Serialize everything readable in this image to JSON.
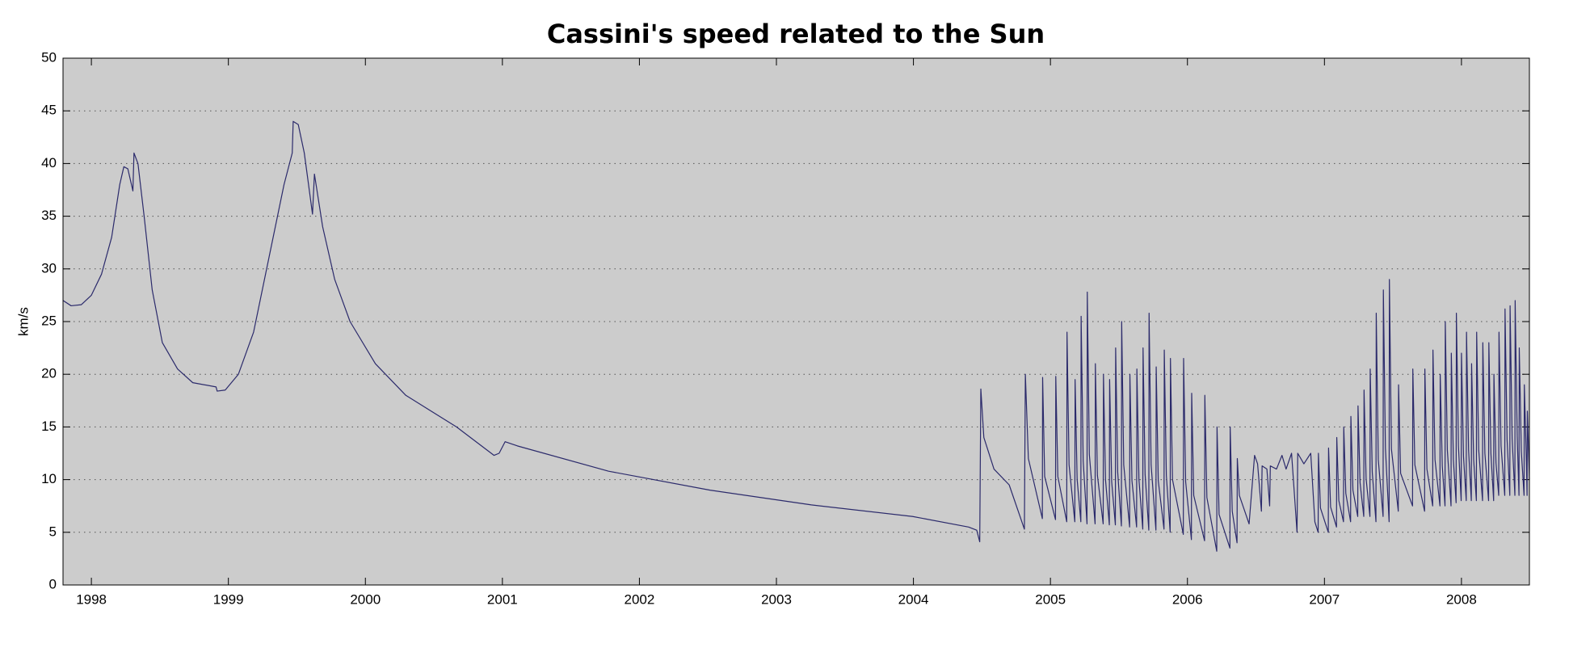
{
  "chart_data": {
    "type": "line",
    "title": "Cassini's speed related to the Sun",
    "y_label": "km/s",
    "color": "#2b2a6b",
    "background": "#cccccc",
    "grid": true,
    "xlim": [
      1997.793,
      2008.496
    ],
    "xticks": [
      1998,
      1999,
      2000,
      2001,
      2002,
      2003,
      2004,
      2005,
      2006,
      2007,
      2008
    ],
    "ylim": [
      0,
      50
    ],
    "yticks": [
      0,
      5,
      10,
      15,
      20,
      25,
      30,
      35,
      40,
      45,
      50
    ],
    "x": [
      1997.793,
      1997.852,
      1997.926,
      1998.0,
      1998.074,
      1998.148,
      1998.207,
      1998.237,
      1998.266,
      1998.303,
      1998.311,
      1998.34,
      1998.385,
      1998.444,
      1998.518,
      1998.629,
      1998.74,
      1998.91,
      1998.918,
      1998.977,
      1999.073,
      1999.184,
      1999.295,
      1999.406,
      1999.466,
      1999.473,
      1999.51,
      1999.554,
      1999.614,
      1999.628,
      1999.688,
      1999.776,
      1999.888,
      2000.073,
      2000.295,
      2000.665,
      2000.939,
      2000.976,
      2001.02,
      2001.109,
      2001.775,
      2002.515,
      2003.255,
      2003.995,
      2004.403,
      2004.462,
      2004.484,
      2004.492,
      2004.514,
      2004.588,
      2004.699,
      2004.81,
      2004.817,
      2004.839,
      2004.941,
      2004.943,
      2004.958,
      2005.037,
      2005.039,
      2005.054,
      2005.119,
      2005.121,
      2005.136,
      2005.178,
      2005.18,
      2005.195,
      2005.222,
      2005.224,
      2005.239,
      2005.267,
      2005.269,
      2005.284,
      2005.326,
      2005.328,
      2005.343,
      2005.385,
      2005.387,
      2005.402,
      2005.43,
      2005.432,
      2005.447,
      2005.474,
      2005.476,
      2005.491,
      2005.518,
      2005.52,
      2005.535,
      2005.578,
      2005.58,
      2005.595,
      2005.629,
      2005.631,
      2005.646,
      2005.674,
      2005.676,
      2005.691,
      2005.718,
      2005.72,
      2005.735,
      2005.77,
      2005.772,
      2005.787,
      2005.829,
      2005.831,
      2005.846,
      2005.874,
      2005.876,
      2005.891,
      2005.97,
      2005.972,
      2005.987,
      2006.029,
      2006.031,
      2006.046,
      2006.125,
      2006.127,
      2006.142,
      2006.214,
      2006.216,
      2006.231,
      2006.31,
      2006.312,
      2006.327,
      2006.362,
      2006.364,
      2006.379,
      2006.45,
      2006.49,
      2006.512,
      2006.54,
      2006.545,
      2006.58,
      2006.6,
      2006.605,
      2006.65,
      2006.69,
      2006.72,
      2006.76,
      2006.8,
      2006.805,
      2006.85,
      2006.9,
      2006.93,
      2006.954,
      2006.956,
      2006.971,
      2007.028,
      2007.03,
      2007.045,
      2007.088,
      2007.09,
      2007.105,
      2007.139,
      2007.141,
      2007.156,
      2007.191,
      2007.193,
      2007.208,
      2007.243,
      2007.245,
      2007.26,
      2007.287,
      2007.289,
      2007.304,
      2007.332,
      2007.334,
      2007.349,
      2007.376,
      2007.378,
      2007.393,
      2007.428,
      2007.43,
      2007.445,
      2007.472,
      2007.474,
      2007.489,
      2007.539,
      2007.541,
      2007.556,
      2007.643,
      2007.645,
      2007.66,
      2007.731,
      2007.733,
      2007.748,
      2007.79,
      2007.792,
      2007.807,
      2007.843,
      2007.845,
      2007.86,
      2007.88,
      2007.882,
      2007.897,
      2007.924,
      2007.926,
      2007.941,
      2007.961,
      2007.963,
      2007.978,
      2007.998,
      2008.0,
      2008.015,
      2008.035,
      2008.037,
      2008.052,
      2008.072,
      2008.074,
      2008.089,
      2008.109,
      2008.111,
      2008.126,
      2008.154,
      2008.156,
      2008.171,
      2008.198,
      2008.2,
      2008.215,
      2008.235,
      2008.237,
      2008.252,
      2008.272,
      2008.274,
      2008.289,
      2008.316,
      2008.318,
      2008.333,
      2008.353,
      2008.355,
      2008.37,
      2008.39,
      2008.392,
      2008.407,
      2008.42,
      2008.422,
      2008.437,
      2008.457,
      2008.459,
      2008.474,
      2008.479,
      2008.481,
      2008.494,
      2008.496
    ],
    "values": [
      27.0,
      26.5,
      26.6,
      27.5,
      29.5,
      33,
      38,
      39.7,
      39.5,
      37.4,
      41,
      40,
      35,
      28,
      23,
      20.5,
      19.2,
      18.8,
      18.4,
      18.5,
      20,
      24,
      31,
      38,
      41,
      44,
      43.7,
      41,
      35.2,
      39,
      34,
      29,
      25,
      21,
      18,
      15,
      12.3,
      12.5,
      13.6,
      13.2,
      10.8,
      9,
      7.6,
      6.5,
      5.5,
      5.2,
      4.1,
      18.6,
      14,
      11,
      9.5,
      5.3,
      20,
      12,
      6.3,
      19.7,
      10.3,
      6.2,
      19.8,
      10.3,
      6.0,
      24,
      11.4,
      6,
      19.5,
      10,
      6,
      25.5,
      11.8,
      5.8,
      27.8,
      12.4,
      5.8,
      21,
      10.4,
      5.8,
      20,
      10,
      5.7,
      19.5,
      9.8,
      5.7,
      22.5,
      10.7,
      5.6,
      25,
      11.4,
      5.5,
      20,
      9.9,
      5.5,
      20.5,
      10,
      5.3,
      22.5,
      10.5,
      5.2,
      25.8,
      11.4,
      5.2,
      20.7,
      9.9,
      5.3,
      22.3,
      10.4,
      5.0,
      21.5,
      10,
      4.8,
      21.5,
      9.8,
      4.3,
      18.2,
      8.5,
      4.2,
      18,
      8.3,
      3.2,
      15,
      6.7,
      3.5,
      15,
      7,
      4,
      12,
      8.5,
      5.8,
      12.3,
      11.5,
      7,
      11.3,
      11,
      7.5,
      11.3,
      11,
      12.3,
      11,
      12.5,
      5,
      12.5,
      11.5,
      12.5,
      6,
      5,
      12.5,
      7.3,
      5,
      13,
      7.4,
      5.5,
      14,
      8,
      6,
      15,
      8.7,
      6,
      16,
      9,
      6.5,
      17,
      9.7,
      6.5,
      18.5,
      10.1,
      6.5,
      20.5,
      10.7,
      6,
      25.8,
      11.9,
      6.5,
      28,
      13,
      6,
      29,
      12.9,
      7,
      19,
      10.6,
      7.5,
      20.5,
      11.4,
      7,
      20.5,
      11,
      7.5,
      22.3,
      11.9,
      7.5,
      20,
      11.3,
      7.5,
      25,
      12.8,
      7.5,
      22,
      11.9,
      7.8,
      25.8,
      13.2,
      8,
      22,
      12.2,
      8,
      24,
      12.8,
      8,
      21,
      11.9,
      8,
      24,
      12.8,
      8,
      23,
      12.5,
      8,
      23,
      12.5,
      8,
      20,
      11.6,
      8.5,
      24,
      13.2,
      8.5,
      26.2,
      13.8,
      8.5,
      26.5,
      13.9,
      8.5,
      27,
      14.1,
      8.5,
      22.5,
      12.7,
      8.5,
      19,
      11.7,
      8.5,
      16.5,
      11,
      10
    ]
  }
}
